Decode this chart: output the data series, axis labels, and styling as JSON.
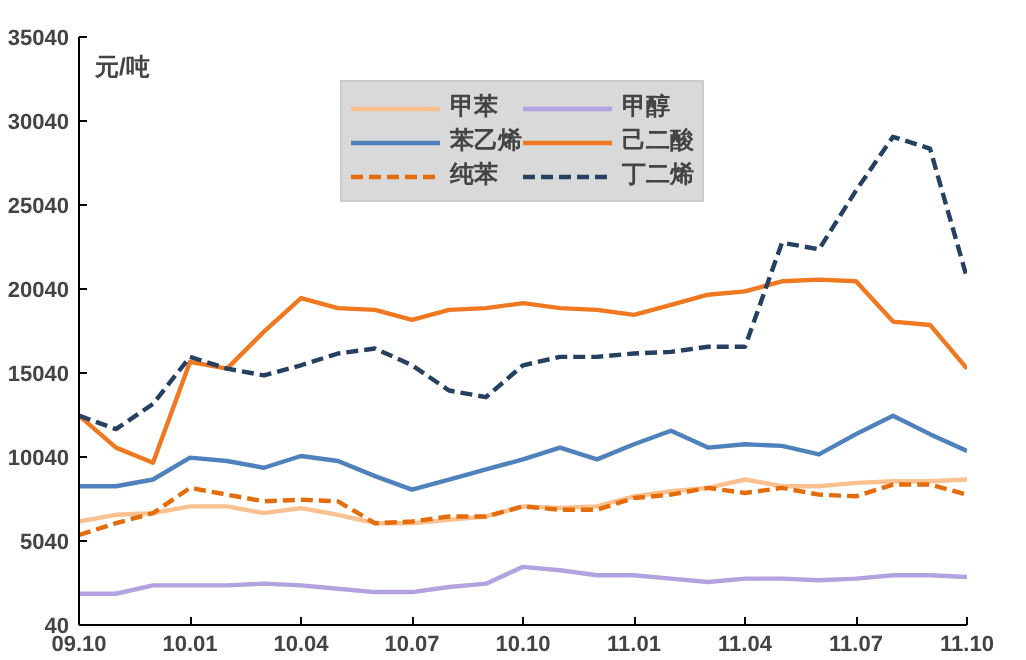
{
  "chart_data": {
    "type": "line",
    "ylabel": "元/吨",
    "categories": [
      "09.10",
      null,
      null,
      "10.01",
      null,
      null,
      "10.04",
      null,
      null,
      "10.07",
      null,
      null,
      "10.10",
      null,
      null,
      "11.01",
      null,
      null,
      "11.04",
      null,
      null,
      "11.07",
      null,
      null,
      "11.10"
    ],
    "ylim": [
      40,
      35040
    ],
    "yticks": [
      40,
      5040,
      10040,
      15040,
      20040,
      25040,
      30040,
      35040
    ],
    "grid": false,
    "legend": "top",
    "series": [
      {
        "name": "甲苯",
        "color": "#fac090",
        "line_style": "solid",
        "values": [
          6200,
          6600,
          6700,
          7100,
          7100,
          6700,
          7000,
          6600,
          6100,
          6100,
          6300,
          6500,
          7100,
          7000,
          7100,
          7700,
          8000,
          8200,
          8700,
          8300,
          8300,
          8500,
          8600,
          8600,
          8700
        ]
      },
      {
        "name": "苯乙烯",
        "color": "#4f81bd",
        "line_style": "solid",
        "values": [
          8300,
          8300,
          8700,
          10000,
          9800,
          9400,
          10100,
          9800,
          8900,
          8100,
          8700,
          9300,
          9900,
          10600,
          9900,
          10800,
          11600,
          10600,
          10800,
          10700,
          10200,
          11400,
          12500,
          11400,
          10400
        ]
      },
      {
        "name": "纯苯",
        "color": "#e46c0a",
        "line_style": "dashed",
        "values": [
          5400,
          6100,
          6700,
          8200,
          7800,
          7400,
          7500,
          7400,
          6100,
          6200,
          6500,
          6500,
          7100,
          6900,
          6900,
          7600,
          7800,
          8200,
          7900,
          8200,
          7800,
          7700,
          8400,
          8400,
          7800
        ]
      },
      {
        "name": "甲醇",
        "color": "#b3a2e0",
        "line_style": "solid",
        "values": [
          1900,
          1900,
          2400,
          2400,
          2400,
          2500,
          2400,
          2200,
          2000,
          2000,
          2300,
          2500,
          3500,
          3300,
          3000,
          3000,
          2800,
          2600,
          2800,
          2800,
          2700,
          2800,
          3000,
          3000,
          2900
        ]
      },
      {
        "name": "己二酸",
        "color": "#f07820",
        "line_style": "solid",
        "values": [
          12500,
          10600,
          9700,
          15700,
          15300,
          17500,
          19500,
          18900,
          18800,
          18200,
          18800,
          18900,
          19200,
          18900,
          18800,
          18500,
          19100,
          19700,
          19900,
          20500,
          20600,
          20500,
          18100,
          17900,
          15300
        ]
      },
      {
        "name": "丁二烯",
        "color": "#254061",
        "line_style": "dashed",
        "values": [
          12500,
          11700,
          13200,
          16000,
          15300,
          14900,
          15500,
          16200,
          16500,
          15500,
          14000,
          13600,
          15500,
          16000,
          16000,
          16200,
          16300,
          16600,
          16600,
          22800,
          22400,
          25900,
          29100,
          28400,
          20700
        ]
      }
    ]
  }
}
